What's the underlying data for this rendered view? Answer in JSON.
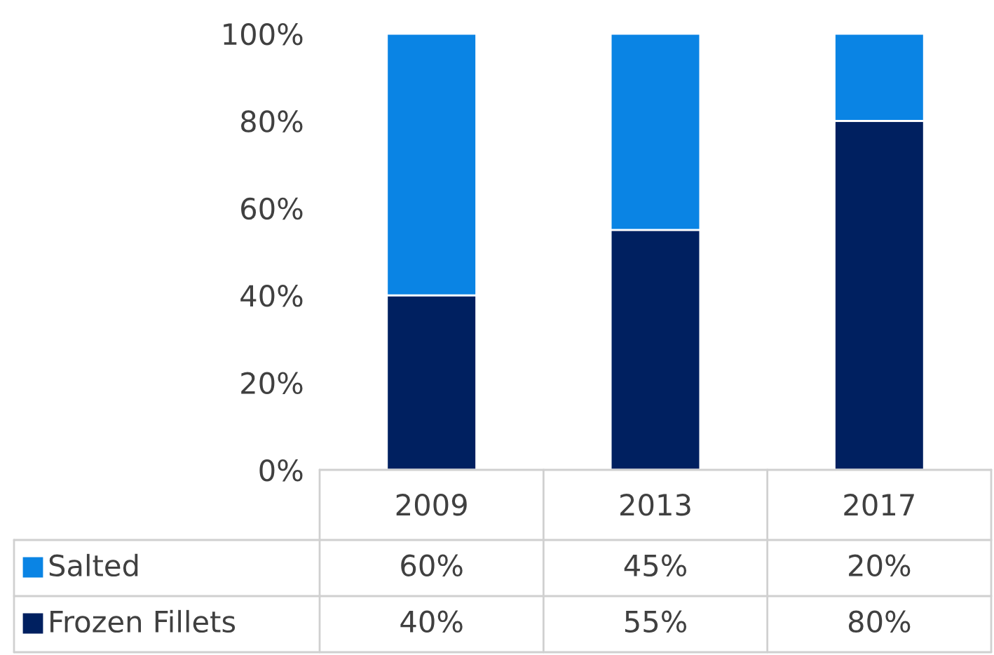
{
  "chart_data": {
    "type": "bar",
    "stacked": true,
    "categories": [
      "2009",
      "2013",
      "2017"
    ],
    "series": [
      {
        "name": "Frozen Fillets",
        "color": "#002060",
        "values": [
          40,
          55,
          80
        ],
        "value_labels": [
          "40%",
          "55%",
          "80%"
        ]
      },
      {
        "name": "Salted",
        "color": "#0A84E4",
        "values": [
          60,
          45,
          20
        ],
        "value_labels": [
          "60%",
          "45%",
          "20%"
        ]
      }
    ],
    "ylim": [
      0,
      100
    ],
    "yticks": [
      {
        "value": 0,
        "label": "0%"
      },
      {
        "value": 20,
        "label": "20%"
      },
      {
        "value": 40,
        "label": "40%"
      },
      {
        "value": 60,
        "label": "60%"
      },
      {
        "value": 80,
        "label": "80%"
      },
      {
        "value": 100,
        "label": "100%"
      }
    ],
    "grid": false,
    "legend": "bottom"
  }
}
